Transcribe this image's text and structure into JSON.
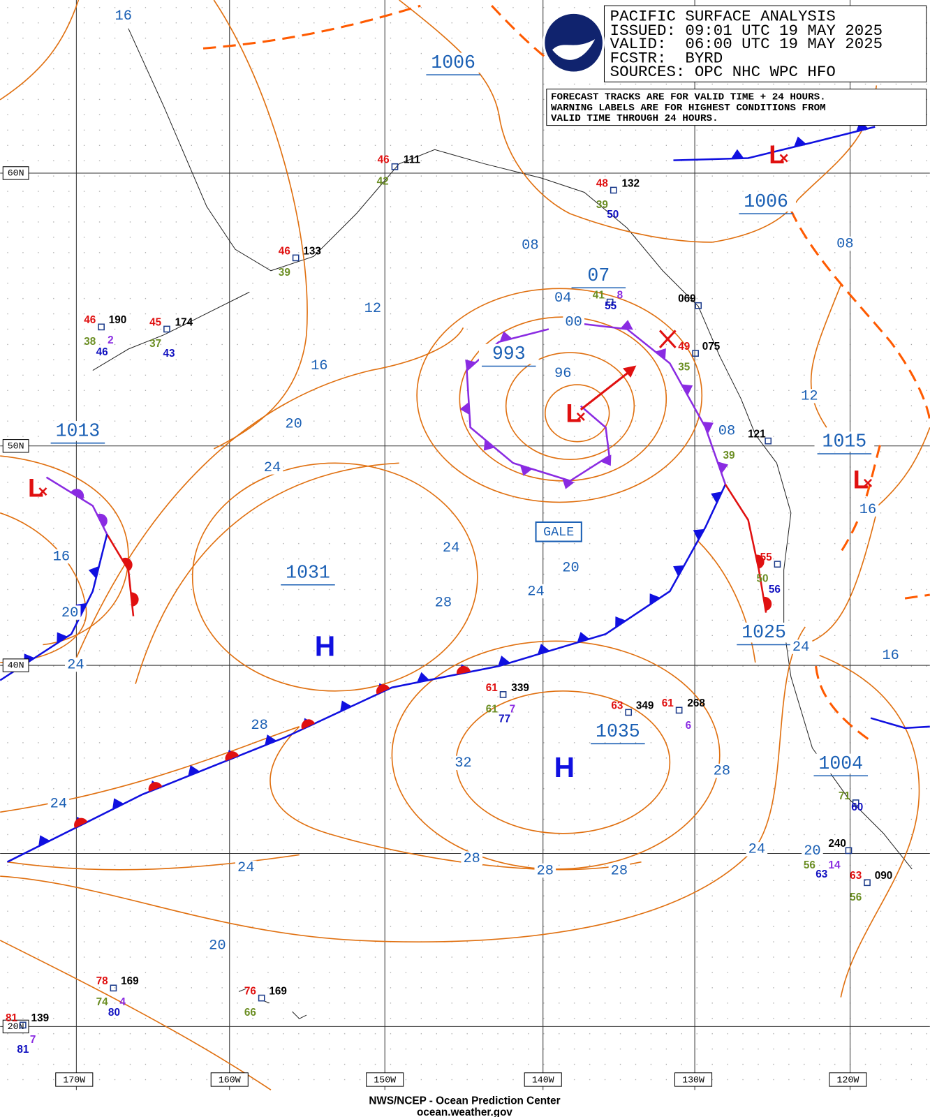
{
  "header": {
    "title": "PACIFIC SURFACE ANALYSIS",
    "issued": "ISSUED: 09:01 UTC 19 MAY 2025",
    "valid": "VALID:  06:00 UTC 19 MAY 2025",
    "forecaster": "FCSTR:  BYRD",
    "sources": "SOURCES: OPC NHC WPC HFO"
  },
  "note": [
    "FORECAST TRACKS ARE FOR VALID TIME + 24 HOURS.",
    "WARNING LABELS ARE FOR HIGHEST CONDITIONS FROM",
    "VALID TIME THROUGH 24 HOURS."
  ],
  "centers": [
    "1006",
    "1006",
    "993",
    "07",
    "1013",
    "1015",
    "1031",
    "1035",
    "1025",
    "1004"
  ],
  "isobars": [
    "16",
    "08",
    "12",
    "04",
    "00",
    "96",
    "16",
    "20",
    "24",
    "08",
    "12",
    "08",
    "16",
    "16",
    "20",
    "24",
    "24",
    "20",
    "24",
    "28",
    "24",
    "16",
    "28",
    "32",
    "28",
    "24",
    "28",
    "28",
    "28",
    "24",
    "20",
    "24",
    "20"
  ],
  "highs": [
    "H",
    "H"
  ],
  "lows": [
    "L",
    "L",
    "L",
    "L"
  ],
  "gale": "GALE",
  "lat_labels": [
    "60N",
    "50N",
    "40N",
    "20N"
  ],
  "lon_labels": [
    "170W",
    "160W",
    "150W",
    "140W",
    "130W",
    "120W"
  ],
  "stations": [
    [
      "46",
      "111",
      "42"
    ],
    [
      "48",
      "132",
      "39",
      "50"
    ],
    [
      "46",
      "133",
      "39"
    ],
    [
      "46",
      "190",
      "38",
      "2",
      "46"
    ],
    [
      "45",
      "174",
      "37",
      "43"
    ],
    [
      "61",
      "339",
      "61",
      "7",
      "77"
    ],
    [
      "63",
      "349"
    ],
    [
      "61",
      "268",
      "6"
    ],
    [
      "78",
      "169",
      "74",
      "4",
      "80"
    ],
    [
      "76",
      "169",
      "66"
    ],
    [
      "240",
      "56",
      "14",
      "63"
    ],
    [
      "63",
      "090",
      "56"
    ],
    [
      "41",
      "8",
      "55"
    ],
    [
      "069"
    ],
    [
      "49",
      "075",
      "35"
    ],
    [
      "121",
      "39"
    ],
    [
      "55",
      "50",
      "56"
    ],
    [
      "71",
      "60"
    ],
    [
      "81",
      "139",
      "7",
      "81"
    ]
  ],
  "footer": [
    "NWS/NCEP - Ocean Prediction Center",
    "ocean.weather.gov"
  ]
}
